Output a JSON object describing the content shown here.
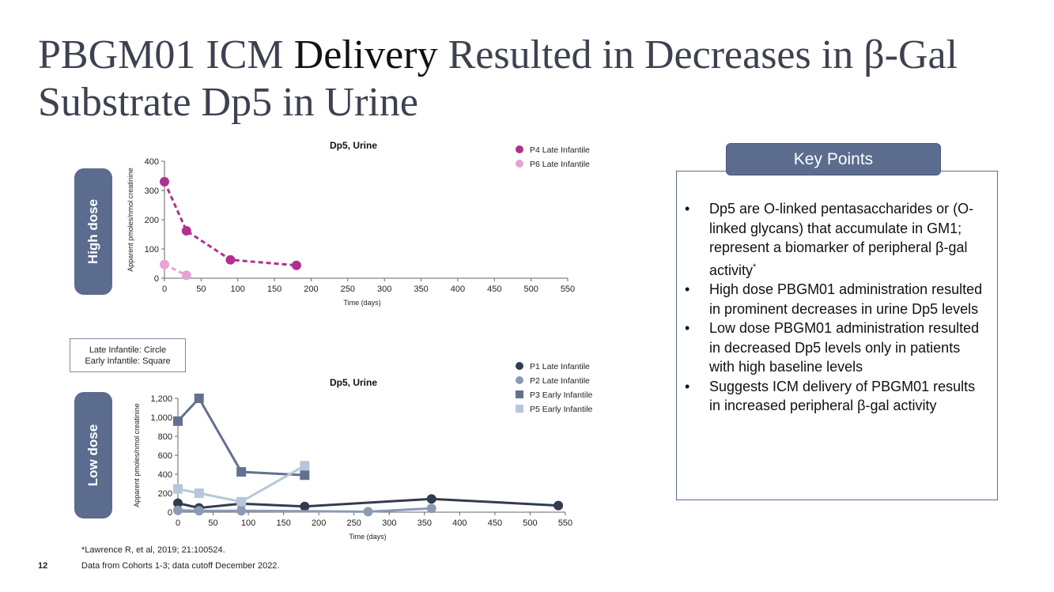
{
  "slide": {
    "title_part1": "PBGM01 ICM ",
    "title_part2": "Delivery",
    "title_part3": " Resulted in Decreases in β-Gal Substrate Dp5 in Urine",
    "high_dose_label": "High dose",
    "low_dose_label": "Low dose",
    "shape_legend": {
      "line1": "Late Infantile: Circle",
      "line2": "Early Infantile: Square"
    },
    "key_points": {
      "header": "Key Points",
      "bullet": "•",
      "items": [
        {
          "text": "Dp5 are O-linked pentasaccharides or (O-linked glycans) that accumulate in GM1; represent a biomarker of peripheral β-gal activity",
          "sup": "*"
        },
        {
          "text": "High dose PBGM01 administration resulted in prominent decreases in urine Dp5 levels",
          "sup": ""
        },
        {
          "text": "Low dose PBGM01 administration resulted in decreased Dp5 levels only in patients with high baseline levels",
          "sup": ""
        },
        {
          "text": "Suggests ICM delivery of PBGM01 results in increased peripheral β-gal activity",
          "sup": ""
        }
      ]
    },
    "footnote1": "*Lawrence R, et al, 2019; 21:100524.",
    "footnote2": "Data from Cohorts 1-3; data cutoff December 2022.",
    "page_number": "12"
  },
  "chart_data": [
    {
      "type": "line",
      "title": "Dp5, Urine",
      "xlabel": "Time (days)",
      "ylabel": "Apparent pmoles/nmol creatinine",
      "xlim": [
        0,
        550
      ],
      "ylim": [
        0,
        400
      ],
      "xticks": [
        0,
        50,
        100,
        150,
        200,
        250,
        300,
        350,
        400,
        450,
        500,
        550
      ],
      "yticks": [
        0,
        100,
        200,
        300,
        400
      ],
      "ytick_labels": [
        "0",
        "100",
        "200",
        "300",
        "400"
      ],
      "series": [
        {
          "name": "P4 Late Infantile",
          "marker": "circle",
          "color": "#b0308c",
          "dash": true,
          "x": [
            0,
            30,
            90,
            180
          ],
          "y": [
            330,
            162,
            63,
            44
          ]
        },
        {
          "name": "P6 Late Infantile",
          "marker": "circle",
          "color": "#e6a3d6",
          "dash": true,
          "x": [
            0,
            30
          ],
          "y": [
            47,
            10
          ]
        }
      ]
    },
    {
      "type": "line",
      "title": "Dp5, Urine",
      "xlabel": "Time (days)",
      "ylabel": "Apparent pmoles/nmol creatinine",
      "xlim": [
        0,
        550
      ],
      "ylim": [
        0,
        1200
      ],
      "xticks": [
        0,
        50,
        100,
        150,
        200,
        250,
        300,
        350,
        400,
        450,
        500,
        550
      ],
      "yticks": [
        0,
        200,
        400,
        600,
        800,
        1000,
        1200
      ],
      "ytick_labels": [
        "0",
        "200",
        "400",
        "600",
        "800",
        "1,000",
        "1,200"
      ],
      "series": [
        {
          "name": "P1 Late Infantile",
          "marker": "circle",
          "color": "#323c4f",
          "dash": false,
          "x": [
            0,
            30,
            90,
            180,
            360,
            540
          ],
          "y": [
            95,
            45,
            90,
            60,
            140,
            70
          ]
        },
        {
          "name": "P2 Late Infantile",
          "marker": "circle",
          "color": "#8b9bb4",
          "dash": false,
          "x": [
            0,
            30,
            90,
            270,
            360
          ],
          "y": [
            20,
            15,
            15,
            5,
            40
          ]
        },
        {
          "name": "P3 Early Infantile",
          "marker": "square",
          "color": "#63718f",
          "dash": false,
          "x": [
            0,
            30,
            90,
            180
          ],
          "y": [
            960,
            1200,
            425,
            390
          ]
        },
        {
          "name": "P5 Early Infantile",
          "marker": "square",
          "color": "#b7c6dc",
          "dash": false,
          "x": [
            0,
            30,
            90,
            180
          ],
          "y": [
            245,
            200,
            110,
            490
          ]
        }
      ]
    }
  ]
}
